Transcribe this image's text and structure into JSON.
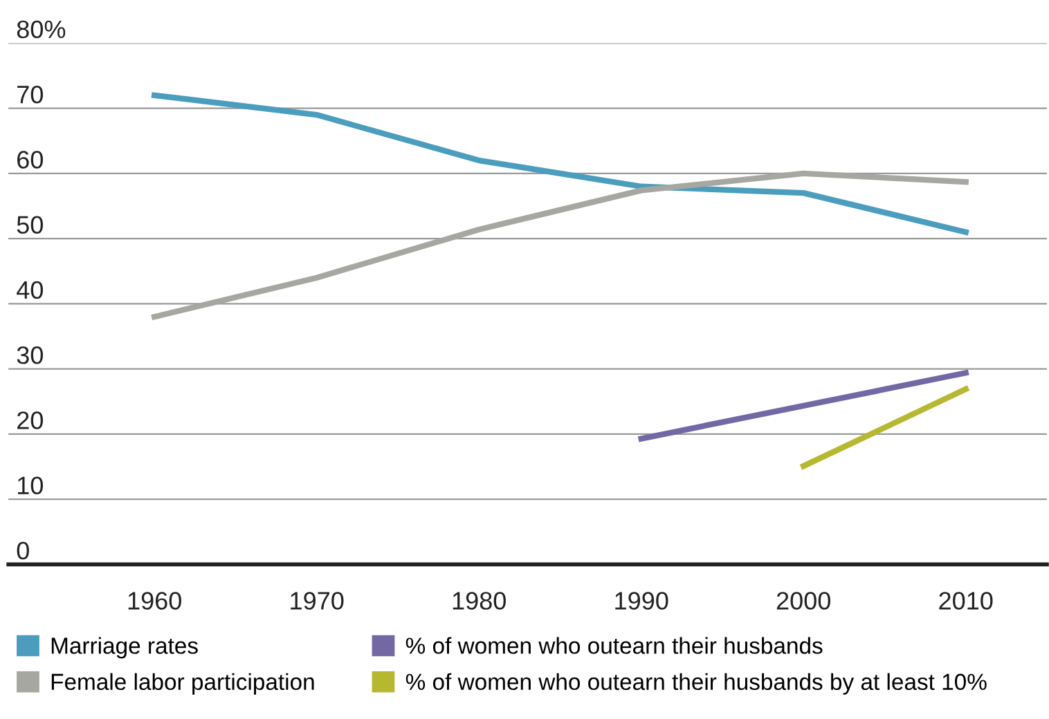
{
  "chart_data": {
    "type": "line",
    "x": [
      1960,
      1970,
      1980,
      1990,
      2000,
      2010
    ],
    "series": [
      {
        "name": "Marriage rates",
        "color": "#4b9dbd",
        "values": [
          72,
          69,
          62,
          58,
          57,
          51
        ]
      },
      {
        "name": "Female labor participation",
        "color": "#a7a7a1",
        "values": [
          38,
          44,
          51.4,
          57.4,
          60,
          58.7
        ]
      },
      {
        "name": "% of women who outearn their husbands",
        "color": "#7468a4",
        "x": [
          1990,
          2010
        ],
        "values": [
          19.3,
          29.4
        ]
      },
      {
        "name": "% of women who outearn their husbands by at least 10%",
        "color": "#b6b830",
        "x": [
          2000,
          2010
        ],
        "values": [
          15.1,
          26.9
        ]
      }
    ],
    "xlim": [
      1951,
      2015
    ],
    "xticks": [
      1960,
      1970,
      1980,
      1990,
      2000,
      2010
    ],
    "ylim": [
      0,
      80
    ],
    "yticks": [
      0,
      10,
      20,
      30,
      40,
      50,
      60,
      70,
      {
        "value": 80,
        "label": "80%"
      }
    ],
    "grid": "y",
    "legend": "bottom",
    "marker": "none",
    "line_style": "solid"
  }
}
